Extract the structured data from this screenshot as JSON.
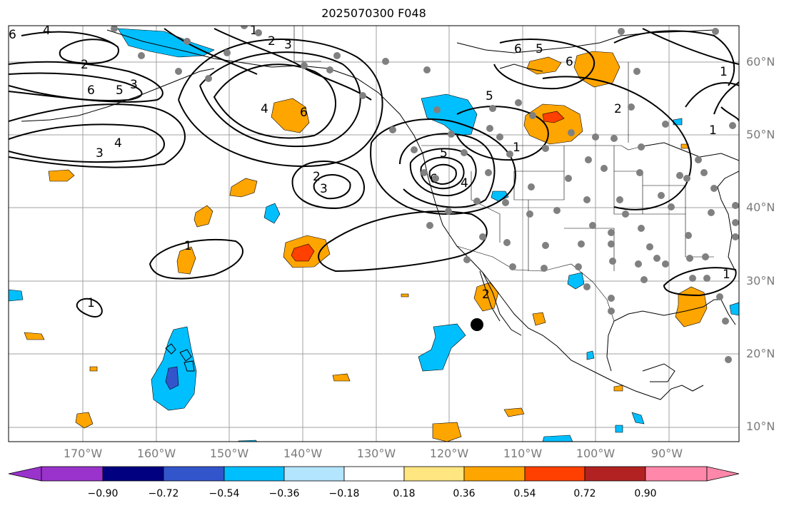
{
  "title": "2025070300 F048",
  "lat_labels": [
    "60°N",
    "50°N",
    "40°N",
    "30°N",
    "20°N",
    "10°N"
  ],
  "lon_labels": [
    "170°W",
    "160°W",
    "150°W",
    "140°W",
    "130°W",
    "120°W",
    "110°W",
    "100°W",
    "90°W"
  ],
  "colorbar": {
    "ticks": [
      "−0.90",
      "−0.72",
      "−0.54",
      "−0.36",
      "−0.18",
      "0.18",
      "0.36",
      "0.54",
      "0.72",
      "0.90"
    ],
    "colors": [
      "#9933cc",
      "#000080",
      "#3355cc",
      "#00bfff",
      "#b3e5ff",
      "#ffffff",
      "#ffe680",
      "#ffa500",
      "#ff4000",
      "#b22222",
      "#ff88aa"
    ]
  },
  "contour_labels": [
    "1",
    "2",
    "3",
    "4",
    "5",
    "6"
  ],
  "colors": {
    "contour": "#000000",
    "grid": "#a0a0a0",
    "station": "#808080",
    "coast": "#000000"
  }
}
